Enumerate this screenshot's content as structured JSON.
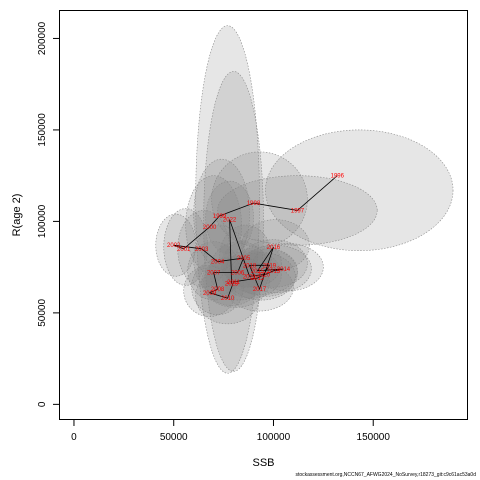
{
  "chart_data": {
    "type": "scatter",
    "xlabel": "SSB",
    "ylabel": "R(age 2)",
    "xlim": [
      -7000,
      197000
    ],
    "ylim": [
      -8000,
      215000
    ],
    "xticks": [
      0,
      50000,
      100000,
      150000
    ],
    "yticks": [
      0,
      50000,
      100000,
      150000,
      200000
    ],
    "grid": false,
    "colors": {
      "ellipse_fill": "#808080",
      "ellipse_stroke": "#8a8a8a",
      "path": "#000000",
      "year_label": "#ff0000"
    },
    "points": [
      {
        "year": "1996",
        "ssb": 132000,
        "rec": 125000
      },
      {
        "year": "1997",
        "ssb": 112000,
        "rec": 106000
      },
      {
        "year": "1998",
        "ssb": 90000,
        "rec": 110000
      },
      {
        "year": "1999",
        "ssb": 73000,
        "rec": 103000
      },
      {
        "year": "2000",
        "ssb": 68000,
        "rec": 97000
      },
      {
        "year": "2001",
        "ssb": 55000,
        "rec": 85000
      },
      {
        "year": "2002",
        "ssb": 50000,
        "rec": 87000
      },
      {
        "year": "2003",
        "ssb": 64000,
        "rec": 85000
      },
      {
        "year": "2004",
        "ssb": 72000,
        "rec": 78000
      },
      {
        "year": "2005",
        "ssb": 85000,
        "rec": 80000
      },
      {
        "year": "2006",
        "ssb": 82000,
        "rec": 72000
      },
      {
        "year": "2007",
        "ssb": 70000,
        "rec": 72000
      },
      {
        "year": "2008",
        "ssb": 72000,
        "rec": 63000
      },
      {
        "year": "2009",
        "ssb": 68000,
        "rec": 61000
      },
      {
        "year": "2010",
        "ssb": 77000,
        "rec": 58000
      },
      {
        "year": "2011",
        "ssb": 80000,
        "rec": 67000
      },
      {
        "year": "2012",
        "ssb": 92000,
        "rec": 69000
      },
      {
        "year": "2013",
        "ssb": 100000,
        "rec": 73000
      },
      {
        "year": "2014",
        "ssb": 105000,
        "rec": 74000
      },
      {
        "year": "2015",
        "ssb": 92000,
        "rec": 73000
      },
      {
        "year": "2016",
        "ssb": 100000,
        "rec": 86000
      },
      {
        "year": "2017",
        "ssb": 93000,
        "rec": 63000
      },
      {
        "year": "2018",
        "ssb": 88000,
        "rec": 76000
      },
      {
        "year": "2019",
        "ssb": 98000,
        "rec": 76000
      },
      {
        "year": "2020",
        "ssb": 95000,
        "rec": 71000
      },
      {
        "year": "2021",
        "ssb": 88000,
        "rec": 70000
      },
      {
        "year": "2022",
        "ssb": 78000,
        "rec": 101000
      },
      {
        "year": "2023",
        "ssb": 79000,
        "rec": 66000
      }
    ],
    "ellipses": [
      {
        "cx": 77000,
        "cy": 112000,
        "rx": 16000,
        "ry": 95000,
        "rot": 0
      },
      {
        "cx": 80000,
        "cy": 100000,
        "rx": 15000,
        "ry": 82000,
        "rot": 0
      },
      {
        "cx": 143000,
        "cy": 117000,
        "rx": 47000,
        "ry": 33000,
        "rot": 0
      },
      {
        "cx": 112000,
        "cy": 106000,
        "rx": 40000,
        "ry": 19000,
        "rot": 0
      },
      {
        "cx": 93000,
        "cy": 112000,
        "rx": 24000,
        "ry": 26000,
        "rot": 0
      },
      {
        "cx": 74000,
        "cy": 104000,
        "rx": 14000,
        "ry": 30000,
        "rot": 0
      },
      {
        "cx": 70000,
        "cy": 98000,
        "rx": 14000,
        "ry": 27000,
        "rot": 0
      },
      {
        "cx": 56000,
        "cy": 86000,
        "rx": 11000,
        "ry": 21000,
        "rot": 0
      },
      {
        "cx": 51000,
        "cy": 87000,
        "rx": 10000,
        "ry": 17000,
        "rot": 0
      },
      {
        "cx": 65000,
        "cy": 85000,
        "rx": 13000,
        "ry": 21000,
        "rot": 0
      },
      {
        "cx": 73000,
        "cy": 79000,
        "rx": 13000,
        "ry": 19000,
        "rot": 0
      },
      {
        "cx": 86000,
        "cy": 81000,
        "rx": 13000,
        "ry": 17000,
        "rot": 0
      },
      {
        "cx": 83000,
        "cy": 73000,
        "rx": 15000,
        "ry": 16000,
        "rot": 0
      },
      {
        "cx": 70000,
        "cy": 73000,
        "rx": 13000,
        "ry": 16000,
        "rot": 0
      },
      {
        "cx": 72000,
        "cy": 64000,
        "rx": 13000,
        "ry": 15000,
        "rot": 0
      },
      {
        "cx": 68000,
        "cy": 62000,
        "rx": 13000,
        "ry": 14000,
        "rot": 0
      },
      {
        "cx": 77000,
        "cy": 59000,
        "rx": 16000,
        "ry": 15000,
        "rot": 0
      },
      {
        "cx": 81000,
        "cy": 67000,
        "rx": 17000,
        "ry": 14000,
        "rot": 0
      },
      {
        "cx": 94000,
        "cy": 70000,
        "rx": 17000,
        "ry": 13000,
        "rot": 0
      },
      {
        "cx": 101000,
        "cy": 74000,
        "rx": 18000,
        "ry": 13000,
        "rot": 0
      },
      {
        "cx": 107000,
        "cy": 75000,
        "rx": 18000,
        "ry": 13000,
        "rot": 0
      },
      {
        "cx": 94000,
        "cy": 73000,
        "rx": 18000,
        "ry": 13000,
        "rot": 0
      },
      {
        "cx": 101000,
        "cy": 87000,
        "rx": 17000,
        "ry": 14000,
        "rot": 0
      },
      {
        "cx": 93000,
        "cy": 64000,
        "rx": 17000,
        "ry": 13000,
        "rot": 0
      },
      {
        "cx": 89000,
        "cy": 77000,
        "rx": 15000,
        "ry": 13000,
        "rot": 0
      },
      {
        "cx": 100000,
        "cy": 77000,
        "rx": 17000,
        "ry": 13000,
        "rot": 0
      },
      {
        "cx": 96000,
        "cy": 72000,
        "rx": 16000,
        "ry": 13000,
        "rot": 0
      },
      {
        "cx": 89000,
        "cy": 71000,
        "rx": 15000,
        "ry": 13000,
        "rot": 0
      },
      {
        "cx": 78000,
        "cy": 102000,
        "rx": 12000,
        "ry": 20000,
        "rot": 0
      },
      {
        "cx": 79000,
        "cy": 67000,
        "rx": 14000,
        "ry": 13000,
        "rot": 0
      }
    ]
  },
  "footer": "stockassessment.org,NCCN67_AFWG2024_NoSurvey,r18273_git:c9c61ac53a0d"
}
